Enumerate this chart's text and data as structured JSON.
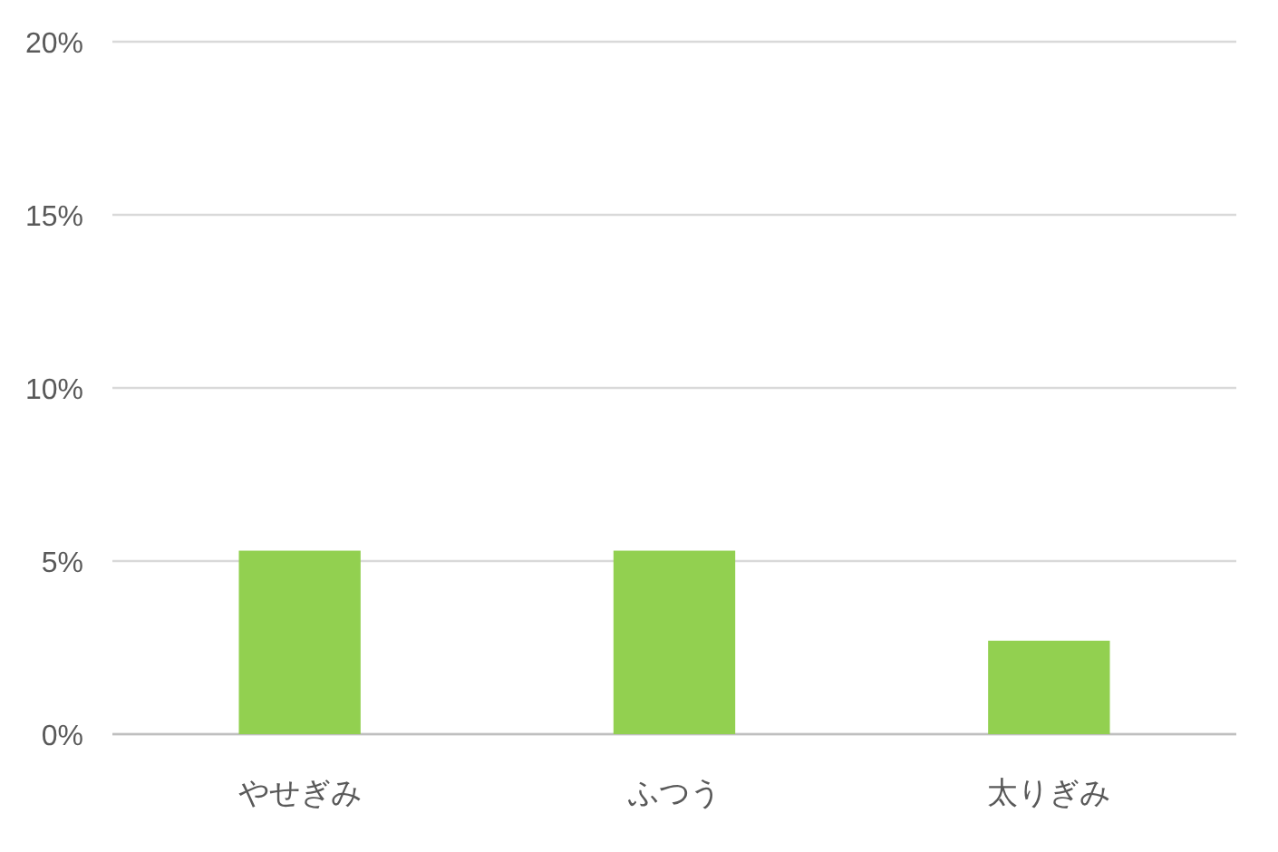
{
  "chart_data": {
    "type": "bar",
    "categories": [
      "やせぎみ",
      "ふつう",
      "太りぎみ"
    ],
    "values": [
      5.3,
      5.3,
      2.7
    ],
    "color": "#92d050",
    "ylim": [
      0,
      20
    ],
    "yticks": [
      {
        "value": 0,
        "label": "0%"
      },
      {
        "value": 5,
        "label": "5%"
      },
      {
        "value": 10,
        "label": "10%"
      },
      {
        "value": 15,
        "label": "15%"
      },
      {
        "value": 20,
        "label": "20%"
      }
    ],
    "grid": "y"
  }
}
